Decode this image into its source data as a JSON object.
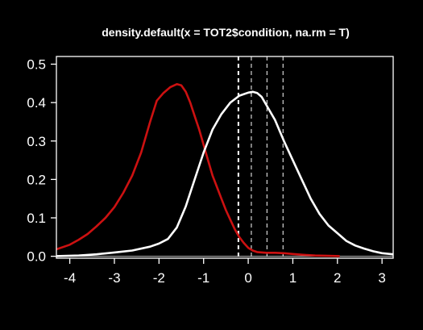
{
  "chart_data": {
    "type": "line",
    "title": "density.default(x = TOT2$condition, na.rm = T)",
    "xlabel": "",
    "ylabel": "",
    "xlim": [
      -4.3,
      3.25
    ],
    "ylim": [
      -0.005,
      0.52
    ],
    "x_ticks": [
      -4,
      -3,
      -2,
      -1,
      0,
      1,
      2,
      3
    ],
    "x_tick_labels": [
      "-4",
      "-3",
      "-2",
      "-1",
      "0",
      "1",
      "2",
      "3"
    ],
    "y_ticks": [
      0.0,
      0.1,
      0.2,
      0.3,
      0.4,
      0.5
    ],
    "y_tick_labels": [
      "0.0",
      "0.1",
      "0.2",
      "0.3",
      "0.4",
      "0.5"
    ],
    "grid": false,
    "background": "#000000",
    "foreground": "#ffffff",
    "baseline": 0,
    "baseline_color": "#bbbbbb",
    "series": [
      {
        "color": "#cc1111",
        "x": [
          -4.3,
          -4.0,
          -3.8,
          -3.6,
          -3.4,
          -3.2,
          -3.0,
          -2.8,
          -2.6,
          -2.4,
          -2.2,
          -2.05,
          -1.9,
          -1.75,
          -1.6,
          -1.5,
          -1.4,
          -1.3,
          -1.2,
          -1.1,
          -1.0,
          -0.9,
          -0.8,
          -0.7,
          -0.6,
          -0.5,
          -0.4,
          -0.3,
          -0.2,
          -0.1,
          0.0,
          0.1,
          0.2,
          0.4,
          0.6,
          0.8,
          1.0,
          1.2,
          1.5,
          1.8,
          2.05
        ],
        "y": [
          0.018,
          0.03,
          0.043,
          0.058,
          0.078,
          0.1,
          0.128,
          0.165,
          0.21,
          0.27,
          0.35,
          0.405,
          0.425,
          0.44,
          0.448,
          0.445,
          0.428,
          0.4,
          0.365,
          0.33,
          0.29,
          0.25,
          0.21,
          0.18,
          0.15,
          0.12,
          0.095,
          0.07,
          0.05,
          0.035,
          0.022,
          0.015,
          0.011,
          0.009,
          0.009,
          0.008,
          0.006,
          0.004,
          0.002,
          0.001,
          0.0005
        ]
      },
      {
        "color": "#ffffff",
        "x": [
          -4.3,
          -3.8,
          -3.4,
          -3.0,
          -2.6,
          -2.2,
          -2.0,
          -1.8,
          -1.6,
          -1.4,
          -1.2,
          -1.0,
          -0.8,
          -0.6,
          -0.4,
          -0.2,
          0.0,
          0.1,
          0.2,
          0.3,
          0.4,
          0.6,
          0.8,
          1.0,
          1.2,
          1.4,
          1.6,
          1.8,
          2.0,
          2.2,
          2.4,
          2.6,
          2.8,
          3.0,
          3.25
        ],
        "y": [
          0.0005,
          0.002,
          0.005,
          0.01,
          0.015,
          0.025,
          0.033,
          0.045,
          0.075,
          0.13,
          0.2,
          0.27,
          0.33,
          0.37,
          0.4,
          0.418,
          0.426,
          0.428,
          0.425,
          0.415,
          0.395,
          0.355,
          0.3,
          0.25,
          0.2,
          0.15,
          0.11,
          0.08,
          0.06,
          0.04,
          0.028,
          0.02,
          0.013,
          0.008,
          0.005
        ]
      }
    ],
    "vlines": [
      {
        "x": -0.22,
        "style": "dashed",
        "emphasis": "thick"
      },
      {
        "x": 0.07,
        "style": "dashed",
        "emphasis": "thin"
      },
      {
        "x": 0.42,
        "style": "dashed",
        "emphasis": "thin"
      },
      {
        "x": 0.78,
        "style": "dashed",
        "emphasis": "thin"
      }
    ]
  }
}
